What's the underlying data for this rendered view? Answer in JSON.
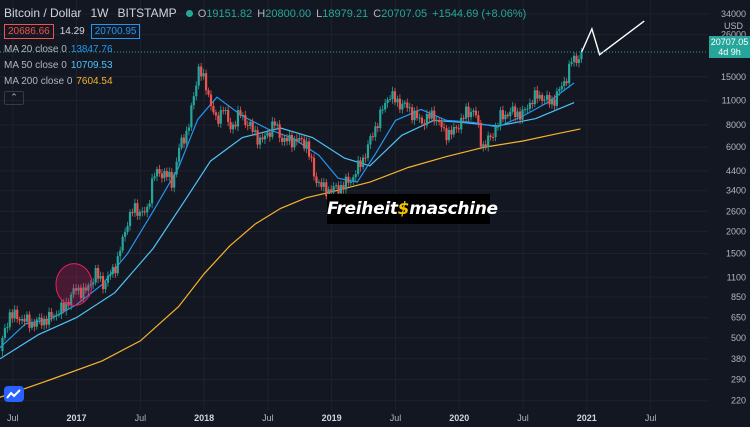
{
  "header": {
    "symbol": "Bitcoin / Dollar",
    "interval": "1W",
    "exchange": "BITSTAMP",
    "open_label": "O",
    "open": "19151.82",
    "high_label": "H",
    "high": "20800.00",
    "low_label": "L",
    "low": "18979.21",
    "close_label": "C",
    "close": "20707.05",
    "change": "+1544.69 (+8.06%)"
  },
  "quote": {
    "sell": "20686.66",
    "spread": "14.29",
    "buy": "20700.95"
  },
  "indicators": [
    {
      "label": "MA 20 close 0",
      "value": "13847.76",
      "color": "#2196f3"
    },
    {
      "label": "MA 50 close 0",
      "value": "10709.53",
      "color": "#4fc3f7"
    },
    {
      "label": "MA 200 close 0",
      "value": "7604.54",
      "color": "#f7b32b"
    }
  ],
  "collapse_icon": "chevron-up-icon",
  "watermark": {
    "prefix": "Freiheit",
    "symbol": "$",
    "suffix": "maschine"
  },
  "price_tag": {
    "price": "20707.05",
    "countdown": "4d 9h"
  },
  "currency": "USD",
  "colors": {
    "background": "#131722",
    "up": "#26a69a",
    "down": "#ef5350",
    "grid": "#1e222d",
    "text": "#b2b5be",
    "drawing": "#ffffff",
    "highlight": "#e91e63"
  },
  "chart_data": {
    "type": "candlestick",
    "title": "Bitcoin / Dollar 1W BITSTAMP",
    "xlabel": "",
    "ylabel": "USD",
    "y_scale": "log",
    "ylim": [
      195,
      34000
    ],
    "xlim": [
      2016.4,
      2021.95
    ],
    "y_ticks": [
      34000,
      26000,
      15000,
      11000,
      8000,
      6000,
      4400,
      3400,
      2600,
      2000,
      1500,
      1100,
      850,
      650,
      500,
      380,
      290,
      220
    ],
    "x_ticks": [
      {
        "t": 2016.5,
        "label": "Jul"
      },
      {
        "t": 2017.0,
        "label": "2017"
      },
      {
        "t": 2017.5,
        "label": "Jul"
      },
      {
        "t": 2018.0,
        "label": "2018"
      },
      {
        "t": 2018.5,
        "label": "Jul"
      },
      {
        "t": 2019.0,
        "label": "2019"
      },
      {
        "t": 2019.5,
        "label": "Jul"
      },
      {
        "t": 2020.0,
        "label": "2020"
      },
      {
        "t": 2020.5,
        "label": "Jul"
      },
      {
        "t": 2021.0,
        "label": "2021"
      },
      {
        "t": 2021.5,
        "label": "Jul"
      }
    ],
    "price_path": [
      [
        2016.4,
        420
      ],
      [
        2016.47,
        680
      ],
      [
        2016.55,
        650
      ],
      [
        2016.65,
        600
      ],
      [
        2016.78,
        640
      ],
      [
        2016.9,
        740
      ],
      [
        2017.0,
        960
      ],
      [
        2017.06,
        890
      ],
      [
        2017.15,
        1150
      ],
      [
        2017.22,
        1000
      ],
      [
        2017.32,
        1350
      ],
      [
        2017.4,
        2300
      ],
      [
        2017.45,
        2700
      ],
      [
        2017.55,
        2500
      ],
      [
        2017.6,
        4200
      ],
      [
        2017.7,
        4300
      ],
      [
        2017.75,
        3700
      ],
      [
        2017.8,
        5800
      ],
      [
        2017.87,
        7500
      ],
      [
        2017.92,
        11500
      ],
      [
        2017.96,
        17500
      ],
      [
        2018.0,
        14000
      ],
      [
        2018.05,
        11000
      ],
      [
        2018.1,
        8000
      ],
      [
        2018.15,
        10500
      ],
      [
        2018.2,
        7500
      ],
      [
        2018.28,
        9300
      ],
      [
        2018.35,
        8000
      ],
      [
        2018.45,
        6400
      ],
      [
        2018.55,
        8200
      ],
      [
        2018.62,
        6500
      ],
      [
        2018.7,
        6600
      ],
      [
        2018.8,
        6400
      ],
      [
        2018.87,
        4000
      ],
      [
        2018.95,
        3400
      ],
      [
        2019.05,
        3500
      ],
      [
        2019.15,
        3900
      ],
      [
        2019.25,
        5200
      ],
      [
        2019.35,
        8000
      ],
      [
        2019.45,
        12000
      ],
      [
        2019.5,
        11000
      ],
      [
        2019.6,
        10000
      ],
      [
        2019.7,
        8300
      ],
      [
        2019.8,
        9200
      ],
      [
        2019.88,
        7300
      ],
      [
        2019.95,
        7200
      ],
      [
        2020.05,
        9300
      ],
      [
        2020.12,
        9800
      ],
      [
        2020.18,
        6000
      ],
      [
        2020.25,
        6800
      ],
      [
        2020.32,
        8800
      ],
      [
        2020.4,
        9500
      ],
      [
        2020.5,
        9200
      ],
      [
        2020.58,
        11500
      ],
      [
        2020.65,
        11600
      ],
      [
        2020.72,
        10600
      ],
      [
        2020.8,
        13000
      ],
      [
        2020.85,
        15500
      ],
      [
        2020.88,
        18500
      ],
      [
        2020.93,
        19100
      ],
      [
        2020.96,
        20707
      ]
    ],
    "series": [
      {
        "name": "MA 20",
        "color": "#2196f3",
        "points": [
          [
            2016.4,
            440
          ],
          [
            2016.6,
            600
          ],
          [
            2016.8,
            640
          ],
          [
            2017.0,
            770
          ],
          [
            2017.2,
            1000
          ],
          [
            2017.4,
            1500
          ],
          [
            2017.6,
            2600
          ],
          [
            2017.8,
            4600
          ],
          [
            2017.95,
            8600
          ],
          [
            2018.1,
            11500
          ],
          [
            2018.3,
            9000
          ],
          [
            2018.5,
            7600
          ],
          [
            2018.7,
            6700
          ],
          [
            2018.9,
            5400
          ],
          [
            2019.05,
            4000
          ],
          [
            2019.2,
            3800
          ],
          [
            2019.35,
            5600
          ],
          [
            2019.5,
            8500
          ],
          [
            2019.7,
            9800
          ],
          [
            2019.9,
            8500
          ],
          [
            2020.1,
            8300
          ],
          [
            2020.3,
            7800
          ],
          [
            2020.5,
            9000
          ],
          [
            2020.7,
            10800
          ],
          [
            2020.9,
            13847.76
          ]
        ]
      },
      {
        "name": "MA 50",
        "color": "#4fc3f7",
        "points": [
          [
            2016.4,
            380
          ],
          [
            2016.7,
            520
          ],
          [
            2017.0,
            650
          ],
          [
            2017.3,
            900
          ],
          [
            2017.6,
            1600
          ],
          [
            2017.85,
            3000
          ],
          [
            2018.05,
            5000
          ],
          [
            2018.3,
            6800
          ],
          [
            2018.6,
            7700
          ],
          [
            2018.85,
            6800
          ],
          [
            2019.1,
            5200
          ],
          [
            2019.3,
            4700
          ],
          [
            2019.55,
            7000
          ],
          [
            2019.8,
            8500
          ],
          [
            2020.0,
            8300
          ],
          [
            2020.3,
            7900
          ],
          [
            2020.6,
            8700
          ],
          [
            2020.9,
            10709.53
          ]
        ]
      },
      {
        "name": "MA 200",
        "color": "#f7b32b",
        "points": [
          [
            2016.4,
            230
          ],
          [
            2016.8,
            290
          ],
          [
            2017.2,
            370
          ],
          [
            2017.5,
            480
          ],
          [
            2017.8,
            750
          ],
          [
            2018.0,
            1150
          ],
          [
            2018.2,
            1650
          ],
          [
            2018.4,
            2200
          ],
          [
            2018.6,
            2700
          ],
          [
            2018.8,
            3100
          ],
          [
            2019.0,
            3350
          ],
          [
            2019.3,
            3800
          ],
          [
            2019.6,
            4600
          ],
          [
            2019.9,
            5300
          ],
          [
            2020.2,
            6000
          ],
          [
            2020.5,
            6500
          ],
          [
            2020.75,
            7100
          ],
          [
            2020.95,
            7604.54
          ]
        ]
      }
    ],
    "annotations": [
      {
        "type": "circle",
        "t": 2016.98,
        "price": 1000,
        "label": ""
      },
      {
        "type": "projection",
        "points": [
          [
            2020.96,
            20707
          ],
          [
            2021.04,
            28000
          ],
          [
            2021.1,
            20000
          ],
          [
            2021.45,
            31000
          ]
        ]
      }
    ]
  }
}
